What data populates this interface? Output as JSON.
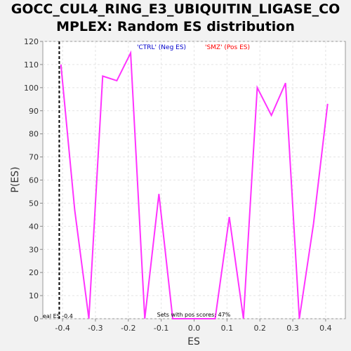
{
  "chart_data": {
    "type": "line",
    "title_lines": [
      "GOCC_CUL4_RING_E3_UBIQUITIN_LIGASE_CO",
      "MPLEX: Random ES distribution"
    ],
    "xlabel": "ES",
    "ylabel": "P(ES)",
    "xlim": [
      -0.46,
      0.46
    ],
    "ylim": [
      0,
      120
    ],
    "x_ticks": [
      -0.4,
      -0.3,
      -0.2,
      -0.1,
      0.0,
      0.1,
      0.2,
      0.3,
      0.4
    ],
    "x_tick_labels": [
      "-0.4",
      "-0.3",
      "-0.2",
      "-0.1",
      "0.0",
      "0.1",
      "0.2",
      "0.3",
      "0.4"
    ],
    "y_ticks": [
      0,
      10,
      20,
      30,
      40,
      50,
      60,
      70,
      80,
      90,
      100,
      110,
      120
    ],
    "y_tick_labels": [
      "0",
      "10",
      "20",
      "30",
      "40",
      "50",
      "60",
      "70",
      "80",
      "90",
      "100",
      "110",
      "120"
    ],
    "grid": true,
    "series": [
      {
        "color": "#ff33ff",
        "x": [
          -0.405,
          -0.363,
          -0.32,
          -0.278,
          -0.235,
          -0.193,
          -0.15,
          -0.107,
          -0.065,
          -0.022,
          0.021,
          0.064,
          0.107,
          0.15,
          0.192,
          0.235,
          0.278,
          0.32,
          0.363,
          0.406
        ],
        "y": [
          110,
          47,
          0,
          105,
          103,
          115,
          0,
          54,
          0,
          0,
          0,
          0,
          44,
          0,
          100,
          88,
          102,
          0,
          41,
          93
        ]
      }
    ],
    "legend": [
      {
        "label": "'CTRL' (Neg ES)",
        "color": "#0000cc"
      },
      {
        "label": "'SMZ' (Pos ES)",
        "color": "#ff0000"
      }
    ],
    "legend_position": "top-center",
    "real_es": {
      "x": -0.41,
      "label": "eal ES -0.4"
    },
    "annotation": "Sets with pos scores: 47%"
  }
}
